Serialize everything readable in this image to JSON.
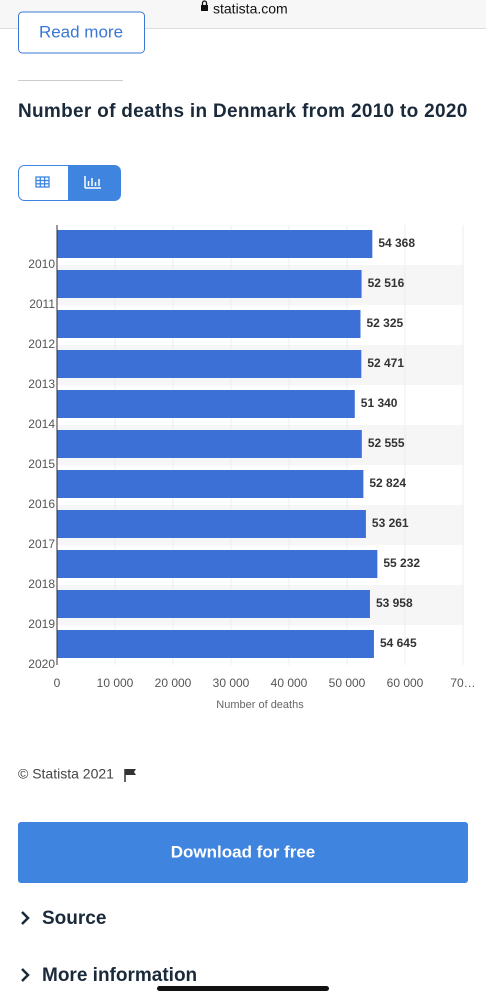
{
  "url": "statista.com",
  "read_more": "Read more",
  "chart_data": {
    "type": "barh",
    "title": "Number of deaths in Denmark from 2010 to 2020",
    "xlabel": "Number of deaths",
    "categories": [
      "2010",
      "2011",
      "2012",
      "2013",
      "2014",
      "2015",
      "2016",
      "2017",
      "2018",
      "2019",
      "2020"
    ],
    "values": [
      54368,
      52516,
      52325,
      52471,
      51340,
      52555,
      52824,
      53261,
      55232,
      53958,
      54645
    ],
    "value_labels": [
      "54 368",
      "52 516",
      "52 325",
      "52 471",
      "51 340",
      "52 555",
      "52 824",
      "53 261",
      "55 232",
      "53 958",
      "54 645"
    ],
    "color": "#3d70d6",
    "xlim": [
      0,
      70000
    ],
    "xticks": [
      0,
      {
        "value": 10000,
        "label": "10 000"
      },
      {
        "value": 20000,
        "label": "20 000"
      },
      {
        "value": 30000,
        "label": "30 000"
      },
      {
        "value": 40000,
        "label": "40 000"
      },
      {
        "value": 50000,
        "label": "50 000"
      },
      {
        "value": 60000,
        "label": "60 000"
      },
      {
        "value": 70000,
        "label": "70…"
      }
    ],
    "grid": true
  },
  "footer": {
    "copyright": "© Statista 2021",
    "download": "Download for free",
    "source": "Source",
    "more_information": "More information"
  }
}
